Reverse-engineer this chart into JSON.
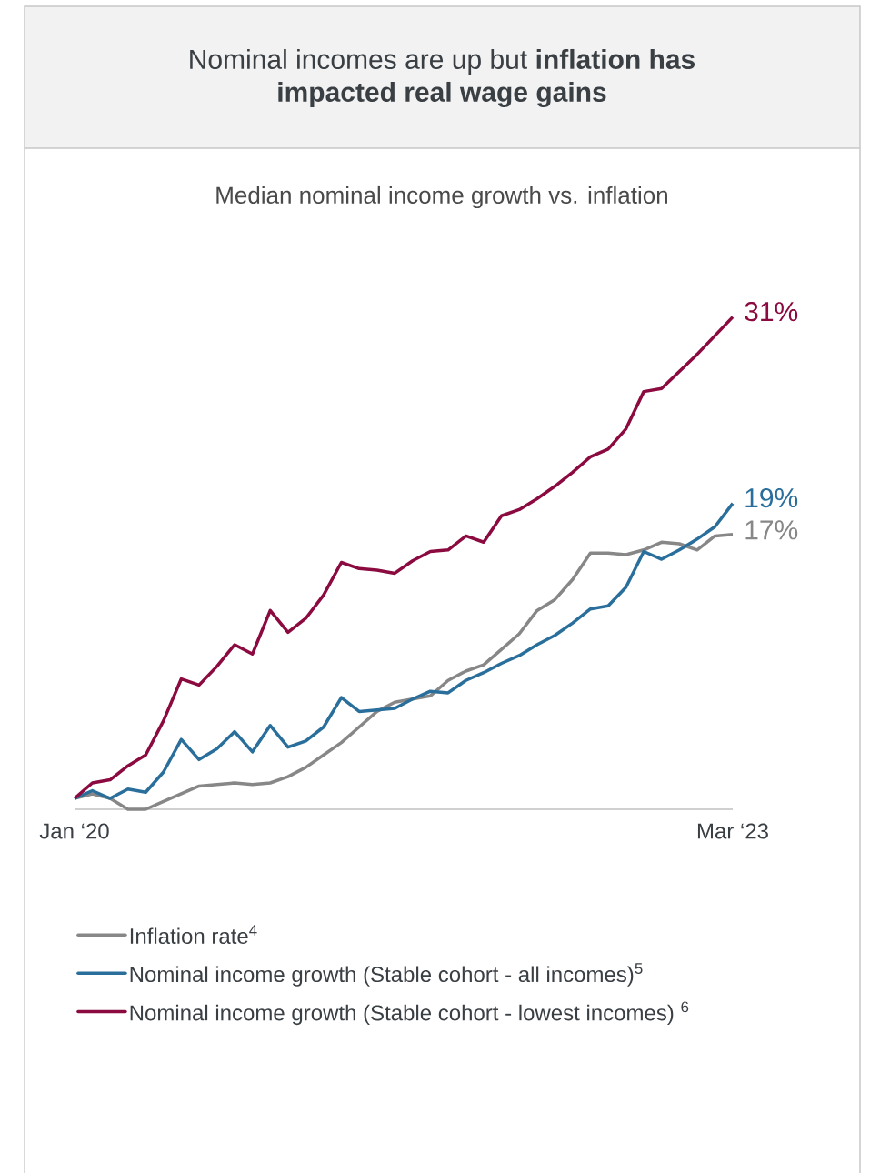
{
  "chart_data": {
    "type": "line",
    "title": "Nominal incomes are up but **inflation has impacted real wage gains**",
    "subtitle": "Median nominal income growth vs. inflation",
    "categories": [
      "Jan ‘20",
      null,
      null,
      null,
      null,
      null,
      null,
      null,
      null,
      null,
      null,
      null,
      null,
      null,
      null,
      null,
      null,
      null,
      null,
      null,
      null,
      null,
      null,
      null,
      null,
      null,
      null,
      null,
      null,
      null,
      null,
      null,
      null,
      null,
      null,
      null,
      null,
      "Mar ‘23"
    ],
    "tick_labels": "x",
    "legend": "bottom",
    "series": [
      {
        "name": "Inflation rate$^{4}$",
        "color": "#878787",
        "values": [
          0,
          0.3,
          0,
          -0.7,
          -0.7,
          -0.2,
          0.3,
          0.8,
          0.9,
          1.0,
          0.9,
          1.0,
          1.4,
          2.0,
          2.8,
          3.6,
          4.6,
          5.6,
          6.2,
          6.4,
          6.6,
          7.6,
          8.2,
          8.6,
          9.6,
          10.6,
          12.1,
          12.8,
          14.1,
          15.8,
          15.8,
          15.7,
          16.0,
          16.5,
          16.4,
          16.0,
          16.9,
          17
        ],
        "value_labels": [
          null,
          null,
          null,
          null,
          null,
          null,
          null,
          null,
          null,
          null,
          null,
          null,
          null,
          null,
          null,
          null,
          null,
          null,
          null,
          null,
          null,
          null,
          null,
          null,
          null,
          null,
          null,
          null,
          null,
          null,
          null,
          null,
          null,
          null,
          null,
          null,
          null,
          "17%"
        ]
      },
      {
        "name": "Nominal income growth (Stable cohort - all incomes)$^{5}$",
        "color": "#2a6f9b",
        "values": [
          0,
          0.5,
          0,
          0.6,
          0.4,
          1.7,
          3.8,
          2.5,
          3.2,
          4.3,
          3.0,
          4.7,
          3.3,
          3.7,
          4.6,
          6.5,
          5.6,
          5.7,
          5.8,
          6.4,
          6.9,
          6.8,
          7.6,
          8.1,
          8.7,
          9.2,
          9.9,
          10.5,
          11.3,
          12.2,
          12.4,
          13.6,
          15.9,
          15.4,
          16.0,
          16.7,
          17.5,
          19
        ],
        "value_labels": [
          null,
          null,
          null,
          null,
          null,
          null,
          null,
          null,
          null,
          null,
          null,
          null,
          null,
          null,
          null,
          null,
          null,
          null,
          null,
          null,
          null,
          null,
          null,
          null,
          null,
          null,
          null,
          null,
          null,
          null,
          null,
          null,
          null,
          null,
          null,
          null,
          null,
          "19%"
        ]
      },
      {
        "name": "Nominal income growth (Stable cohort - lowest incomes) $^{6}$",
        "color": "#8b0a3f",
        "values": [
          0,
          1.0,
          1.2,
          2.1,
          2.8,
          5.0,
          7.7,
          7.3,
          8.5,
          9.9,
          9.3,
          12.1,
          10.7,
          11.6,
          13.1,
          15.2,
          14.8,
          14.7,
          14.5,
          15.3,
          15.9,
          16.0,
          16.9,
          16.5,
          18.2,
          18.6,
          19.3,
          20.1,
          21.0,
          22.0,
          22.5,
          23.8,
          26.2,
          26.4,
          27.5,
          28.6,
          29.8,
          31
        ],
        "value_labels": [
          null,
          null,
          null,
          null,
          null,
          null,
          null,
          null,
          null,
          null,
          null,
          null,
          null,
          null,
          null,
          null,
          null,
          null,
          null,
          null,
          null,
          null,
          null,
          null,
          null,
          null,
          null,
          null,
          null,
          null,
          null,
          null,
          null,
          null,
          null,
          null,
          null,
          "31%"
        ]
      }
    ]
  }
}
